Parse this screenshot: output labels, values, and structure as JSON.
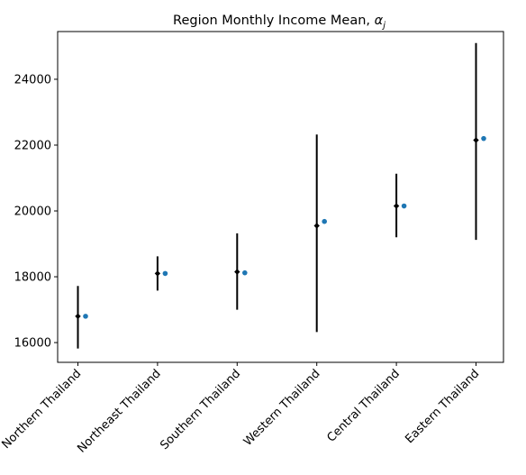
{
  "chart_data": {
    "type": "scatter",
    "title": "Region Monthly Income Mean, ",
    "title_symbol": "α",
    "title_symbol_sub": "j",
    "xlabel": "",
    "ylabel": "",
    "categories": [
      "Northern Thailand",
      "Northeast Thailand",
      "Southern Thailand",
      "Western Thailand",
      "Central Thailand",
      "Eastern Thailand"
    ],
    "ylim": [
      15400,
      25450
    ],
    "yticks": [
      16000,
      18000,
      20000,
      22000,
      24000
    ],
    "grid": false,
    "series": [
      {
        "kind": "estimate-with-interval",
        "color": "#000000",
        "values": [
          16800,
          18100,
          18150,
          19550,
          20150,
          22150
        ],
        "lower": [
          15820,
          17580,
          17000,
          16320,
          19200,
          19120
        ],
        "upper": [
          17720,
          18620,
          19320,
          22320,
          21130,
          25100
        ]
      },
      {
        "kind": "observed",
        "color": "#1f77b4",
        "values": [
          16800,
          18100,
          18120,
          19680,
          20150,
          22200
        ]
      }
    ]
  }
}
